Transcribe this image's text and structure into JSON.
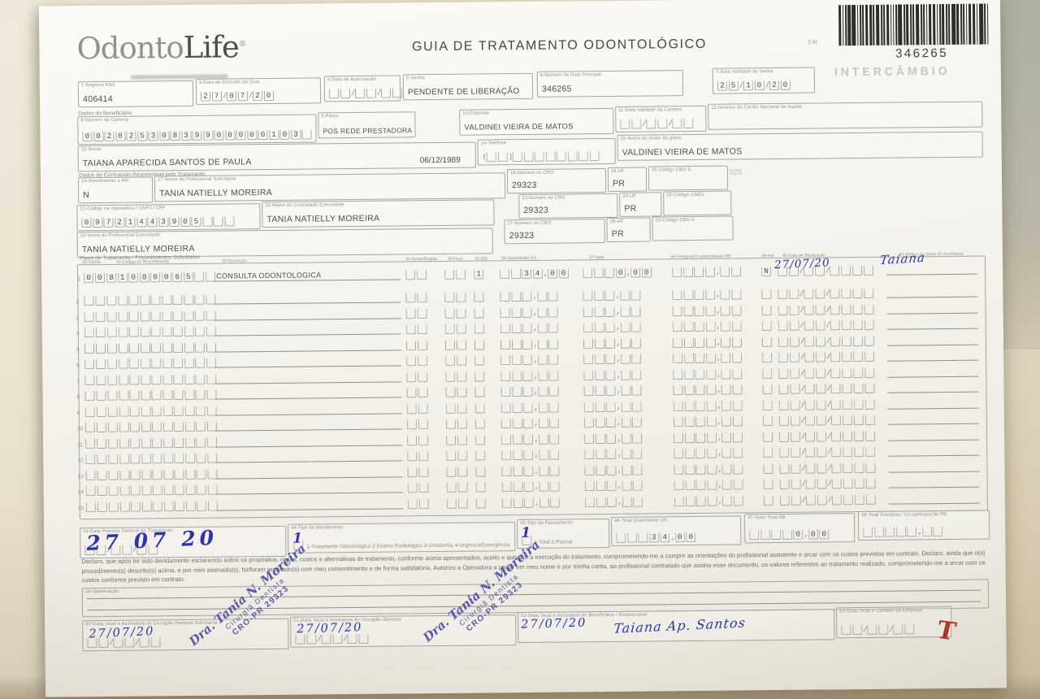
{
  "colors": {
    "pen_ink": "#2c35a5",
    "stamp_ink": "#45459f",
    "red_mark": "#b03428",
    "paper": "#f5f3ee",
    "cloth": "#e7dfcb"
  },
  "header": {
    "logo_part1": "Odonto",
    "logo_part2": "Life",
    "logo_reg": "®",
    "title": "GUIA DE TRATAMENTO ODONTOLÓGICO",
    "barcode_number": "346265",
    "barcode_note": "2 Ar",
    "watermark": "INTERCÂMBIO"
  },
  "top_fields": {
    "f1": {
      "label": "1-Registro ANS",
      "value": "406414"
    },
    "f3": {
      "label": "3-Data de Emissão da Guia",
      "value": "27/07/20"
    },
    "f4": {
      "label": "4-Data de Autorização",
      "value": "  /  /  "
    },
    "f5": {
      "label": "5-Senha",
      "value": "PENDENTE DE LIBERAÇÃO"
    },
    "f6": {
      "label": "6-Número da Guia Principal",
      "value": "346265"
    },
    "f7": {
      "label": "7-Data Validade da Senha",
      "value": "25/10/20"
    }
  },
  "beneficiario": {
    "section_label": "Dados do Beneficiário",
    "f8": {
      "label": "8-Número da Carteira",
      "value": "00202530839900000103"
    },
    "f9": {
      "label": "9-Plano",
      "value": "POS REDE PRESTADORA"
    },
    "f10": {
      "label": "10-Empresa",
      "value": "VALDINEI VIEIRA DE MATOS"
    },
    "f11": {
      "label": "11-Data Validade da Carteira",
      "value": "  /  /  "
    },
    "f12": {
      "label": "12-Número do Cartão Nacional de Saúde",
      "value": ""
    },
    "f13": {
      "label": "13-Nome",
      "value": "TAIANA APARECIDA SANTOS DE PAULA",
      "birth_date": "06/12/1989"
    },
    "f14": {
      "label": "14-Telefone",
      "value": "(  )        "
    },
    "f15": {
      "label": "15-Nome do titular do plano",
      "value": "VALDINEI VIEIRA DE MATOS"
    }
  },
  "contratado": {
    "section_label": "Dados do Contratado Responsável pelo Tratamento",
    "f16": {
      "label": "16-Atendimento a RN",
      "value": "N"
    },
    "f17": {
      "label": "17-Nome do Profissional Solicitante",
      "value": "TANIA NATIELLY MOREIRA"
    },
    "f18": {
      "label": "18-Número no CRO",
      "value": "29323"
    },
    "f19": {
      "label": "19-UF",
      "value": "PR"
    },
    "f20": {
      "label": "20-Código CBO S",
      "value": ""
    },
    "watermark": "025",
    "f21": {
      "label": "21-Código na Operadora / CNPJ / CPF",
      "value": "09721443905"
    },
    "f22": {
      "label": "22-Nome do Contratado Executante",
      "value": "TANIA NATIELLY MOREIRA"
    },
    "f23": {
      "label": "23-Número no CRO",
      "value": "29323"
    },
    "f24": {
      "label": "24-UF",
      "value": "PR"
    },
    "f25": {
      "label": "25-Código CNES",
      "value": ""
    },
    "f26": {
      "label": "26-Nome do Profissional Executante",
      "value": "TANIA NATIELLY MOREIRA"
    },
    "f27": {
      "label": "27-Número no CRO",
      "value": "29323"
    },
    "f28": {
      "label": "28-UF",
      "value": "PR"
    },
    "f29": {
      "label": "29-Código CBO S",
      "value": ""
    }
  },
  "procedimentos": {
    "section_label": "Plano de Tratamento / Procedimentos Solicitados",
    "headers": {
      "h30": "30-Tabela",
      "h31": "31-Código do Procedimento",
      "h32": "32-Descrição",
      "h33": "33-Dente/Região",
      "h34": "34-Face",
      "h35": "35-Qtd",
      "h36": "36-Quantidade US",
      "h37": "37-Valor",
      "h38": "38-Franquia/Co-participação R$",
      "h39": "39-Aut",
      "h40": "40-Data de Realização",
      "h41": "41-Motivo da Glosa  42-Assinatura"
    },
    "rows": [
      {
        "num": "1",
        "tabela": "00",
        "codigo": "81000065",
        "descricao": "CONSULTA ODONTOLOGICA",
        "dente": "",
        "face": "",
        "qtd": "1",
        "quantidade_us": "  34,00",
        "valor": "   0,00",
        "franquia": "    ,  ",
        "aut": "N",
        "date_slots": "  /  /  ",
        "data_realizacao": "27/07/20",
        "glosa": "  ",
        "assinatura": "Taiana"
      }
    ],
    "empty_row_numbers": [
      "2",
      "3",
      "4",
      "5",
      "6",
      "7",
      "8",
      "9",
      "10",
      "11",
      "12",
      "13",
      "14",
      "15"
    ]
  },
  "totais": {
    "f43": {
      "label": "43-Data Prevista Término do Tratamento",
      "slots": "  /  /  ",
      "value": "27 07 20"
    },
    "f44": {
      "label": "44-Tipo de Atendimento",
      "slot": " ",
      "value": "1",
      "options": "1-Tratamento Odontológico  2-Exame Radiológico  3-Ortodontia  4-Urgência/Emergência"
    },
    "f45": {
      "label": "45-Tipo de Faturamento",
      "slot": " ",
      "value": "1",
      "options": "1-Total  2-Parcial"
    },
    "f46": {
      "label": "46-Total Quantidade US",
      "value": "   34,00"
    },
    "f47": {
      "label": "47-Valor Total R$",
      "value": "    0,00"
    },
    "f48": {
      "label": "48-Total Franquia / Co-participação R$",
      "value": "     ,  "
    }
  },
  "declaracao": "Declaro, que após ter sido devidamente esclarecido sobre os propósitos, riscos, custos e alternativas de tratamento, conforme acima apresentados, aceito e autorizo a execução do tratamento, comprometendo-me a cumprir as orientações do profissional assistente e arcar com os custos previstos em contrato. Declaro, ainda que o(s) procedimento(s) descrito(s) acima, e por mim assinado(s), foi/foram realizado(s) com meu consentimento e de forma satisfatória. Autorizo a Operadora a pagar em meu nome e por minha conta, ao profissional contratado que assina esse documento, os valores referentes ao tratamento realizado, comprometendo-me a arcar com os custos conforme previsto em contrato.",
  "observacao": {
    "label": "49-Observação"
  },
  "assinaturas": {
    "f50": {
      "label": "50-Data, local e Assinatura do Cirurgião-Dentista Solicitante",
      "slots": "  /  /  ",
      "date": "27/07/20"
    },
    "f51": {
      "label": "51-Data, local e Assinatura do Cirurgião-Dentista",
      "slots": "  /  /  ",
      "date": "27/07/20"
    },
    "f52": {
      "label": "52-Data, local e Assinatura do Beneficiário / Responsável",
      "date": "27/07/20",
      "signature": "Taiana Ap. Santos"
    },
    "f53": {
      "label": "53-Data, local e Carimbo da Empresa",
      "slots": "  /  /  "
    }
  },
  "stamp": {
    "line1": "Dra. Tania N. Moreira",
    "line2": "Cirurgiã Dentista",
    "line3": "CRO-PR 29323"
  },
  "red_mark": {
    "glyph": "T"
  }
}
